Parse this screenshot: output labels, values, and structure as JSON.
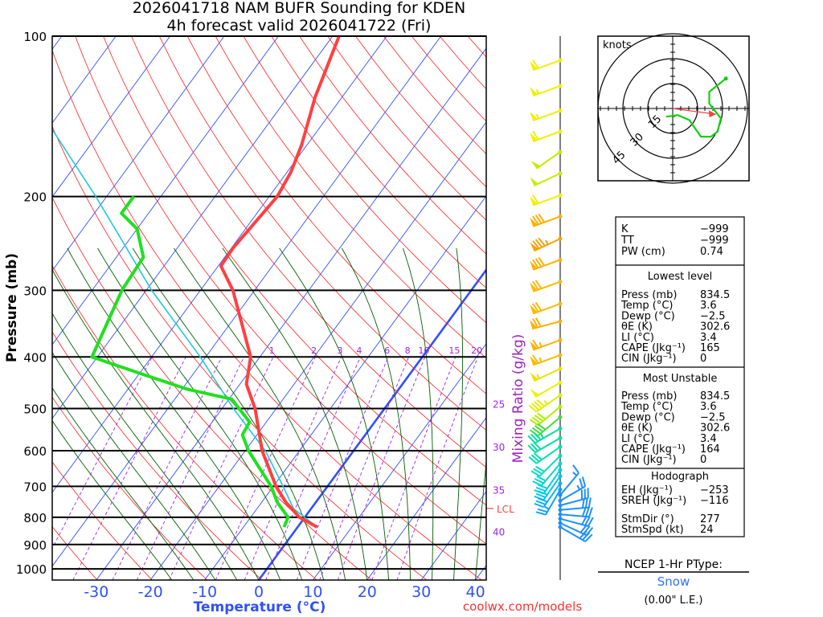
{
  "title": {
    "line1": "2026041718 NAM BUFR Sounding for KDEN",
    "line2": "4h forecast valid 2026041722 (Fri)"
  },
  "colors": {
    "temperature": "#ff4040",
    "dewpoint": "#20e020",
    "parcel": "#20c8d8",
    "isotherm": "#3050ff",
    "dry_adiabat": "#ff2020",
    "moist_adiabat": "#006000",
    "mixing_ratio": "#a020f0",
    "axis_label": "#3050ff",
    "ptype": "#3070ff",
    "credit": "#ff3030"
  },
  "chart_data": {
    "type": "line",
    "subtype": "skew-t log-p",
    "title": "2026041718 NAM BUFR Sounding for KDEN",
    "xlabel": "Temperature (°C)",
    "ylabel": "Pressure (mb)",
    "right_label": "Mixing Ratio (g/kg)",
    "pressure_ticks": [
      100,
      200,
      300,
      400,
      500,
      600,
      700,
      800,
      900,
      1000
    ],
    "temperature_ticks": [
      -30,
      -20,
      -10,
      0,
      10,
      20,
      30,
      40
    ],
    "xlim": [
      -38,
      42
    ],
    "ylim": [
      1050,
      100
    ],
    "mixing_ratio_labels": [
      1,
      2,
      3,
      4,
      6,
      8,
      10,
      15,
      20
    ],
    "theta_w_labels": [
      {
        "value": 25,
        "p": 490
      },
      {
        "value": 30,
        "p": 590
      },
      {
        "value": 35,
        "p": 710
      },
      {
        "value": 40,
        "p": 850
      }
    ],
    "lcl": {
      "label": "LCL",
      "p": 770
    },
    "series": [
      {
        "name": "Temperature",
        "points": [
          [
            834.5,
            3.6
          ],
          [
            800,
            -1
          ],
          [
            750,
            -5.5
          ],
          [
            700,
            -9.5
          ],
          [
            600,
            -16.9
          ],
          [
            500,
            -23.9
          ],
          [
            450,
            -28.8
          ],
          [
            400,
            -31.7
          ],
          [
            300,
            -44
          ],
          [
            270,
            -49.5
          ],
          [
            250,
            -49.7
          ],
          [
            200,
            -48.5
          ],
          [
            180,
            -49.3
          ],
          [
            160,
            -51
          ],
          [
            130,
            -55
          ],
          [
            100,
            -58.8
          ]
        ]
      },
      {
        "name": "Dewpoint",
        "points": [
          [
            834.5,
            -2.5
          ],
          [
            800,
            -3.1
          ],
          [
            750,
            -7.1
          ],
          [
            700,
            -10.4
          ],
          [
            600,
            -19.4
          ],
          [
            560,
            -22.7
          ],
          [
            530,
            -23.1
          ],
          [
            480,
            -29.5
          ],
          [
            460,
            -39
          ],
          [
            430,
            -49.7
          ],
          [
            400,
            -61
          ],
          [
            300,
            -64.5
          ],
          [
            260,
            -65
          ],
          [
            230,
            -70
          ],
          [
            215,
            -75
          ],
          [
            200,
            -75
          ]
        ]
      },
      {
        "name": "Parcel",
        "points": [
          [
            834.5,
            3.6
          ],
          [
            770,
            -3.3
          ],
          [
            700,
            -8.2
          ],
          [
            600,
            -16.3
          ],
          [
            500,
            -27.9
          ],
          [
            400,
            -41
          ],
          [
            300,
            -59
          ],
          [
            200,
            -82
          ],
          [
            150,
            -99
          ]
        ]
      }
    ],
    "wind_barbs": [
      {
        "p": 111,
        "dir": 250,
        "spd": 60,
        "color": "#f0f000"
      },
      {
        "p": 124,
        "dir": 250,
        "spd": 55,
        "color": "#f0f000"
      },
      {
        "p": 138,
        "dir": 250,
        "spd": 55,
        "color": "#f0f000"
      },
      {
        "p": 151,
        "dir": 250,
        "spd": 60,
        "color": "#f0f000"
      },
      {
        "p": 165,
        "dir": 235,
        "spd": 50,
        "color": "#c0f000"
      },
      {
        "p": 181,
        "dir": 245,
        "spd": 50,
        "color": "#c0f000"
      },
      {
        "p": 199,
        "dir": 250,
        "spd": 60,
        "color": "#f0f000"
      },
      {
        "p": 218,
        "dir": 250,
        "spd": 80,
        "color": "#ffb000"
      },
      {
        "p": 240,
        "dir": 245,
        "spd": 85,
        "color": "#ffa000"
      },
      {
        "p": 263,
        "dir": 250,
        "spd": 80,
        "color": "#ffb000"
      },
      {
        "p": 289,
        "dir": 250,
        "spd": 70,
        "color": "#ffb800"
      },
      {
        "p": 318,
        "dir": 250,
        "spd": 70,
        "color": "#ffb800"
      },
      {
        "p": 343,
        "dir": 255,
        "spd": 70,
        "color": "#ffb000"
      },
      {
        "p": 372,
        "dir": 250,
        "spd": 65,
        "color": "#ffb000"
      },
      {
        "p": 397,
        "dir": 250,
        "spd": 65,
        "color": "#ffb800"
      },
      {
        "p": 421,
        "dir": 245,
        "spd": 55,
        "color": "#f0e000"
      },
      {
        "p": 447,
        "dir": 240,
        "spd": 50,
        "color": "#f0f000"
      },
      {
        "p": 472,
        "dir": 235,
        "spd": 45,
        "color": "#e0f000"
      },
      {
        "p": 496,
        "dir": 230,
        "spd": 40,
        "color": "#b0f000"
      },
      {
        "p": 519,
        "dir": 230,
        "spd": 40,
        "color": "#40e040"
      },
      {
        "p": 545,
        "dir": 240,
        "spd": 35,
        "color": "#00e0a0"
      },
      {
        "p": 568,
        "dir": 240,
        "spd": 30,
        "color": "#00e0a0"
      },
      {
        "p": 590,
        "dir": 235,
        "spd": 30,
        "color": "#00e0b0"
      },
      {
        "p": 613,
        "dir": 225,
        "spd": 30,
        "color": "#00e0c0"
      },
      {
        "p": 634,
        "dir": 220,
        "spd": 30,
        "color": "#00d8d0"
      },
      {
        "p": 652,
        "dir": 215,
        "spd": 30,
        "color": "#00d0e0"
      },
      {
        "p": 670,
        "dir": 215,
        "spd": 30,
        "color": "#00c8e8"
      },
      {
        "p": 691,
        "dir": 215,
        "spd": 30,
        "color": "#10b0f0"
      },
      {
        "p": 710,
        "dir": 210,
        "spd": 25,
        "color": "#10a0ff"
      },
      {
        "p": 727,
        "dir": 40,
        "spd": 15,
        "color": "#1e90ff"
      },
      {
        "p": 745,
        "dir": 60,
        "spd": 25,
        "color": "#1e90ff"
      },
      {
        "p": 760,
        "dir": 75,
        "spd": 30,
        "color": "#1e90ff"
      },
      {
        "p": 775,
        "dir": 85,
        "spd": 30,
        "color": "#1e90ff"
      },
      {
        "p": 790,
        "dir": 95,
        "spd": 30,
        "color": "#1e90ff"
      },
      {
        "p": 805,
        "dir": 105,
        "spd": 30,
        "color": "#1e90ff"
      },
      {
        "p": 820,
        "dir": 115,
        "spd": 30,
        "color": "#1e90ff"
      },
      {
        "p": 834.5,
        "dir": 120,
        "spd": 30,
        "color": "#1e90ff"
      }
    ]
  },
  "hodograph": {
    "units_label": "knots",
    "ring_labels": [
      "15",
      "30",
      "45"
    ],
    "path_uv": [
      [
        32,
        18
      ],
      [
        22,
        10
      ],
      [
        22,
        3
      ],
      [
        29,
        -6
      ],
      [
        27,
        -14
      ],
      [
        23,
        -17
      ],
      [
        17,
        -17
      ],
      [
        10,
        -7
      ],
      [
        3,
        -4
      ],
      [
        -4,
        -5
      ]
    ],
    "storm_motion_uv": [
      26,
      -3.5
    ]
  },
  "stats": {
    "indices": [
      {
        "label": "K",
        "value": "−999"
      },
      {
        "label": "TT",
        "value": "−999"
      },
      {
        "label": "PW (cm)",
        "value": "0.74"
      }
    ],
    "lowest_level": {
      "heading": "Lowest level",
      "rows": [
        {
          "label": "Press (mb)",
          "value": "834.5"
        },
        {
          "label": "Temp (°C)",
          "value": "3.6"
        },
        {
          "label": "Dewp (°C)",
          "value": "−2.5"
        },
        {
          "label": "θE (K)",
          "value": "302.6"
        },
        {
          "label": "LI (°C)",
          "value": "3.4"
        },
        {
          "label": "CAPE (Jkg⁻¹)",
          "value": "165"
        },
        {
          "label": "CIN (Jkg⁻¹)",
          "value": "0"
        }
      ]
    },
    "most_unstable": {
      "heading": "Most Unstable",
      "rows": [
        {
          "label": "Press (mb)",
          "value": "834.5"
        },
        {
          "label": "Temp (°C)",
          "value": "3.6"
        },
        {
          "label": "Dewp (°C)",
          "value": "−2.5"
        },
        {
          "label": "θE (K)",
          "value": "302.6"
        },
        {
          "label": "LI (°C)",
          "value": "3.4"
        },
        {
          "label": "CAPE (Jkg⁻¹)",
          "value": "164"
        },
        {
          "label": "CIN (Jkg⁻¹)",
          "value": "0"
        }
      ]
    },
    "hodograph": {
      "heading": "Hodograph",
      "rows": [
        {
          "label": "EH (Jkg⁻¹)",
          "value": "−253"
        },
        {
          "label": "SREH (Jkg⁻¹)",
          "value": "−116"
        },
        {
          "label": "StmDir (°)",
          "value": "277"
        },
        {
          "label": "StmSpd (kt)",
          "value": "24"
        }
      ]
    }
  },
  "ptype": {
    "heading": "NCEP 1-Hr PType:",
    "value": "Snow",
    "liquid_equiv": "(0.00\" L.E.)"
  },
  "credit": "coolwx.com/models"
}
